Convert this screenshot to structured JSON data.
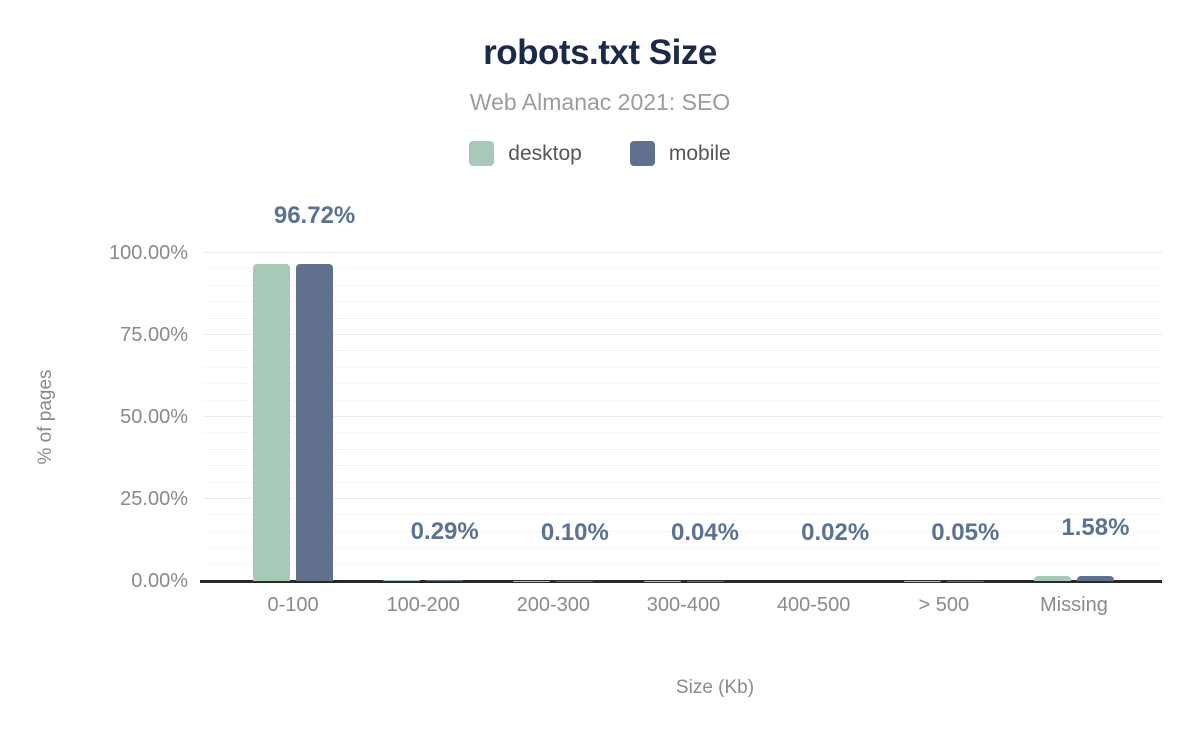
{
  "colors": {
    "title": "#1c2a4a",
    "subtitle": "#9c9c9c",
    "legend_text": "#565656",
    "tick_text": "#8a8a8a",
    "data_label": "#5b7294",
    "axis_line": "#2a2a2a",
    "grid_major": "#ebebeb",
    "grid_minor": "#f6f6f6",
    "desktop": "#a8c9b8",
    "mobile": "#61708c"
  },
  "chart_data": {
    "type": "bar",
    "title": "robots.txt Size",
    "subtitle": "Web Almanac 2021: SEO",
    "categories": [
      "0-100",
      "100-200",
      "200-300",
      "300-400",
      "400-500",
      "> 500",
      "Missing"
    ],
    "series": [
      {
        "name": "desktop",
        "color": "#a8c9b8",
        "values": [
          96.72,
          0.29,
          0.1,
          0.04,
          0.02,
          0.05,
          1.58
        ]
      },
      {
        "name": "mobile",
        "color": "#61708c",
        "values": [
          96.72,
          0.29,
          0.1,
          0.04,
          0.02,
          0.05,
          1.58
        ]
      }
    ],
    "data_labels": [
      "96.72%",
      "0.29%",
      "0.10%",
      "0.04%",
      "0.02%",
      "0.05%",
      "1.58%"
    ],
    "data_labels_shown_for": "mobile",
    "xlabel": "Size (Kb)",
    "ylabel": "% of pages",
    "ylim": [
      0,
      100
    ],
    "yticks": [
      {
        "value": 100,
        "label": "100.00%"
      },
      {
        "value": 75,
        "label": "75.00%"
      },
      {
        "value": 50,
        "label": "50.00%"
      },
      {
        "value": 25,
        "label": "25.00%"
      },
      {
        "value": 0,
        "label": "0.00%"
      }
    ],
    "grid": "horizontal major every 25%, minor every 5%",
    "legend_position": "top-center"
  }
}
